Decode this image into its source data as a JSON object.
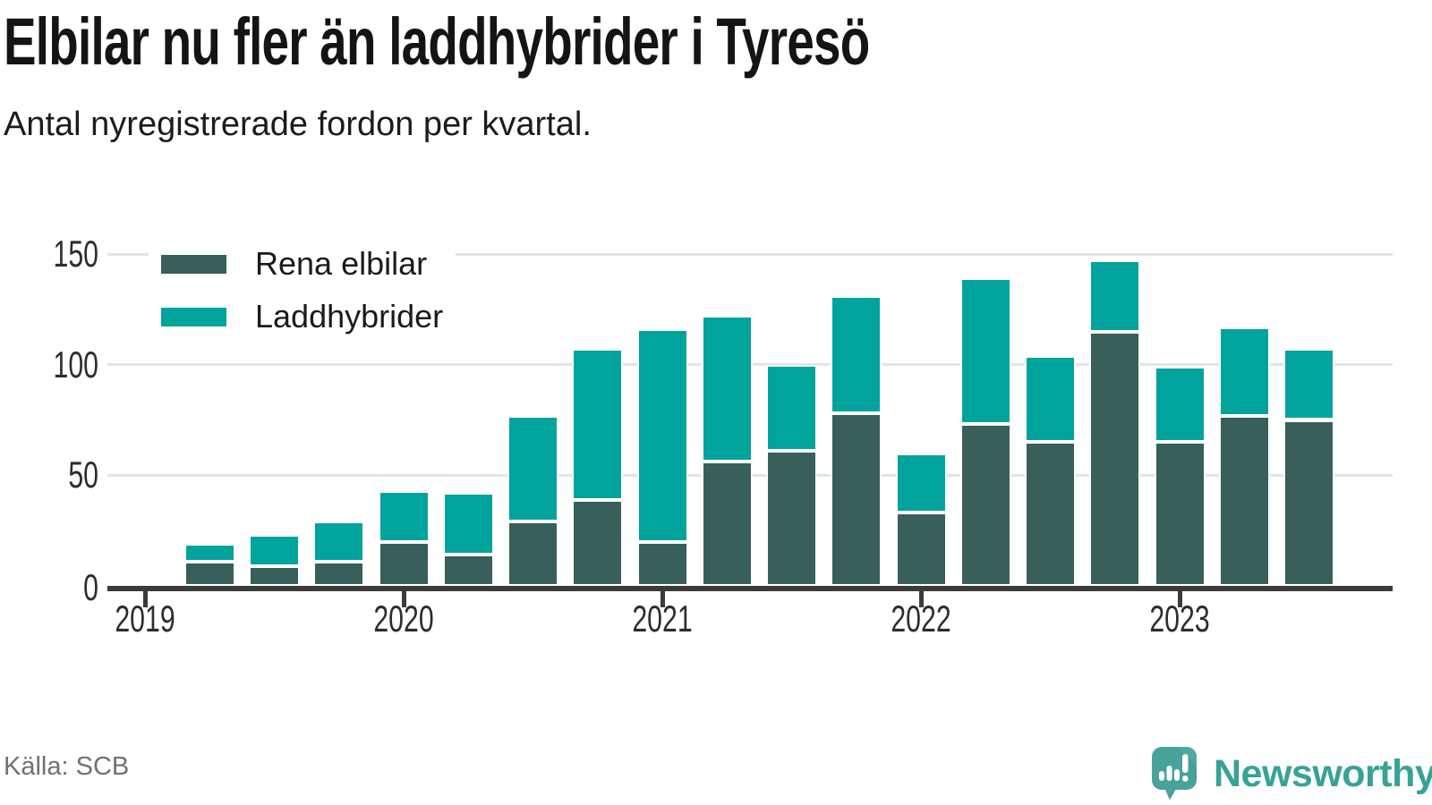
{
  "header": {
    "title": "Elbilar nu fler än laddhybrider i Tyresö",
    "subtitle": "Antal nyregistrerade fordon per kvartal."
  },
  "source": {
    "label": "Källa: SCB"
  },
  "brand": {
    "name": "Newsworthy",
    "color": "#38a296",
    "logo_icon": "speech-bubble-bar-chart-exclamation"
  },
  "chart_data": {
    "type": "bar",
    "stacked": true,
    "title": "Elbilar nu fler än laddhybrider i Tyresö",
    "subtitle": "Antal nyregistrerade fordon per kvartal.",
    "categories": [
      "2019 Q2",
      "2019 Q3",
      "2019 Q4",
      "2020 Q1",
      "2020 Q2",
      "2020 Q3",
      "2020 Q4",
      "2021 Q1",
      "2021 Q2",
      "2021 Q3",
      "2021 Q4",
      "2022 Q1",
      "2022 Q2",
      "2022 Q3",
      "2022 Q4",
      "2023 Q1",
      "2023 Q2",
      "2023 Q3"
    ],
    "series": [
      {
        "name": "Rena elbilar",
        "color": "#385f5a",
        "values": [
          11,
          9,
          11,
          20,
          14,
          29,
          39,
          20,
          56,
          61,
          78,
          33,
          73,
          65,
          115,
          65,
          77,
          75
        ]
      },
      {
        "name": "Laddhybrider",
        "color": "#00a49c",
        "values": [
          8,
          14,
          18,
          23,
          28,
          48,
          68,
          96,
          66,
          39,
          53,
          27,
          66,
          39,
          32,
          34,
          40,
          32
        ]
      }
    ],
    "x_tick_labels": [
      "2019",
      "2020",
      "2021",
      "2022",
      "2023"
    ],
    "y_ticks": [
      0,
      50,
      100,
      150
    ],
    "ylim": [
      0,
      150
    ],
    "grid": true,
    "legend_position": "top-left",
    "axis_color": "#3b3b3b",
    "gridline_color": "#e4e4e4"
  }
}
